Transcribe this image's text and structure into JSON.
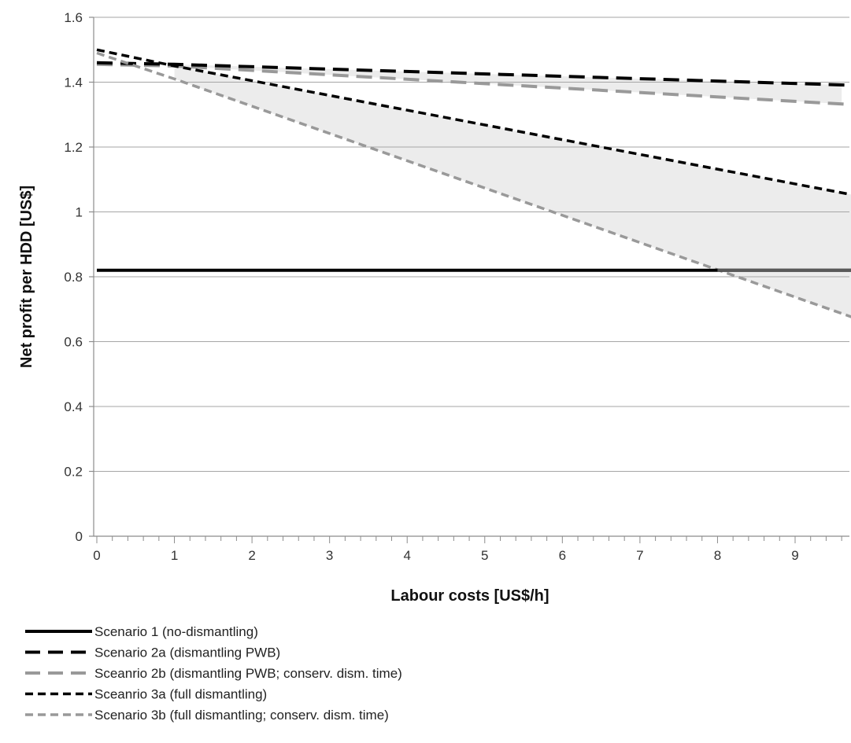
{
  "chart_data": {
    "type": "line",
    "title": "",
    "xlabel": "Labour costs [US$/h]",
    "ylabel": "Net profit per HDD [US$]",
    "xlim": [
      0,
      9.8
    ],
    "ylim": [
      0,
      1.6
    ],
    "xticks": [
      0,
      1,
      2,
      3,
      4,
      5,
      6,
      7,
      8,
      9
    ],
    "yticks": [
      0,
      0.2,
      0.4,
      0.6,
      0.8,
      1,
      1.2,
      1.4,
      1.6
    ],
    "x_tick_labels": [
      "0",
      "1",
      "2",
      "3",
      "4",
      "5",
      "6",
      "7",
      "8",
      "9"
    ],
    "y_tick_labels": [
      "0",
      "0.2",
      "0.4",
      "0.6",
      "0.8",
      "1",
      "1.2",
      "1.4",
      "1.6"
    ],
    "grid": "horizontal",
    "legend_position": "bottom",
    "series": [
      {
        "name": "Scenario 1 (no-dismantling)",
        "style": "solid",
        "color": "#000000",
        "x": [
          0,
          8,
          9.8
        ],
        "y": [
          0.82,
          0.82,
          0.82
        ]
      },
      {
        "name": "Scenario 2a (dismantling PWB)",
        "style": "long-dash",
        "color": "#000000",
        "x": [
          0,
          1,
          9.8
        ],
        "y": [
          1.46,
          1.455,
          1.39
        ]
      },
      {
        "name": "Sceanrio 2b (dismantling PWB; conserv. dism. time)",
        "style": "long-dash",
        "color": "#999999",
        "x": [
          0,
          1,
          9.8
        ],
        "y": [
          1.455,
          1.45,
          1.33
        ]
      },
      {
        "name": "Sceanrio 3a (full dismantling)",
        "style": "short-dash",
        "color": "#000000",
        "x": [
          0,
          1,
          9.8
        ],
        "y": [
          1.5,
          1.45,
          1.05
        ]
      },
      {
        "name": "Scenario 3b (full dismantling; conserv. dism. time)",
        "style": "short-dash",
        "color": "#999999",
        "x": [
          0,
          1,
          9.8
        ],
        "y": [
          1.49,
          1.41,
          0.67
        ]
      }
    ],
    "shaded_regions": [
      {
        "between": [
          "Sceanrio 2b (dismantling PWB; conserv. dism. time)",
          "Scenario 2a (dismantling PWB)"
        ],
        "x_from": 1,
        "x_to": 9.6,
        "color": "#ececec"
      },
      {
        "between": [
          "Scenario 3b (full dismantling; conserv. dism. time)",
          "Sceanrio 3a (full dismantling)"
        ],
        "x_from": 1,
        "x_to": 9.8,
        "color": "#ececec"
      }
    ]
  }
}
